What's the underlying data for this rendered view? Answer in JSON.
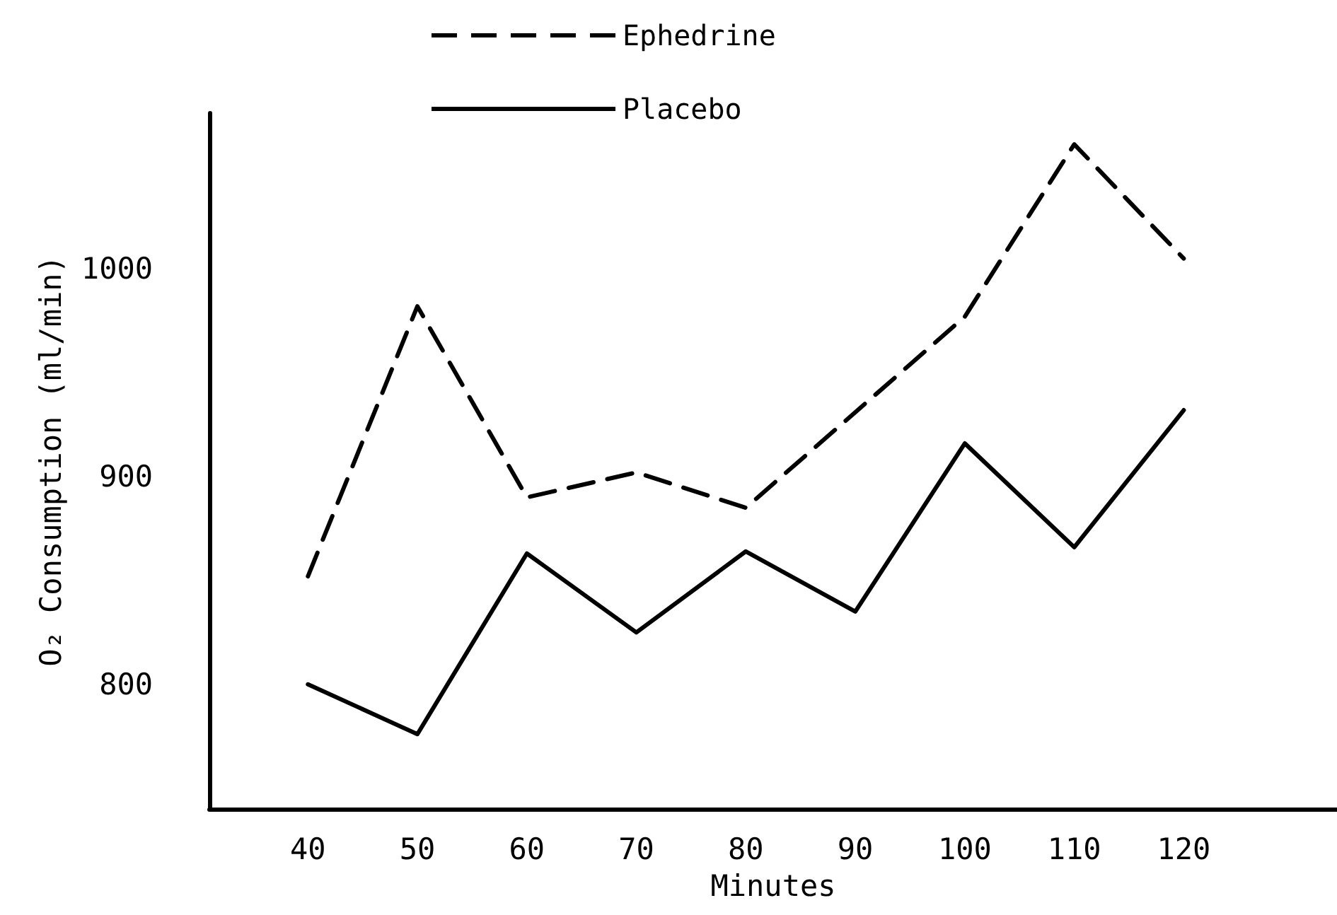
{
  "chart_data": {
    "type": "line",
    "xlabel": "Minutes",
    "ylabel": "O₂ Consumption (ml/min)",
    "x": [
      40,
      50,
      60,
      70,
      80,
      90,
      100,
      110,
      120
    ],
    "series": [
      {
        "name": "Ephedrine",
        "color": "#000000",
        "line_style": "dashed",
        "values": [
          852,
          982,
          890,
          902,
          885,
          931,
          977,
          1060,
          1005
        ]
      },
      {
        "name": "Placebo",
        "color": "#000000",
        "line_style": "solid",
        "values": [
          800,
          776,
          863,
          825,
          864,
          835,
          916,
          866,
          932
        ]
      }
    ],
    "xlim": [
      31,
      134
    ],
    "xticks": [
      40,
      50,
      60,
      70,
      80,
      90,
      100,
      110,
      120
    ],
    "ylim": [
      740,
      1075
    ],
    "yticks": [
      800,
      900,
      1000
    ],
    "grid": false,
    "legend": "top",
    "marker": "none"
  }
}
